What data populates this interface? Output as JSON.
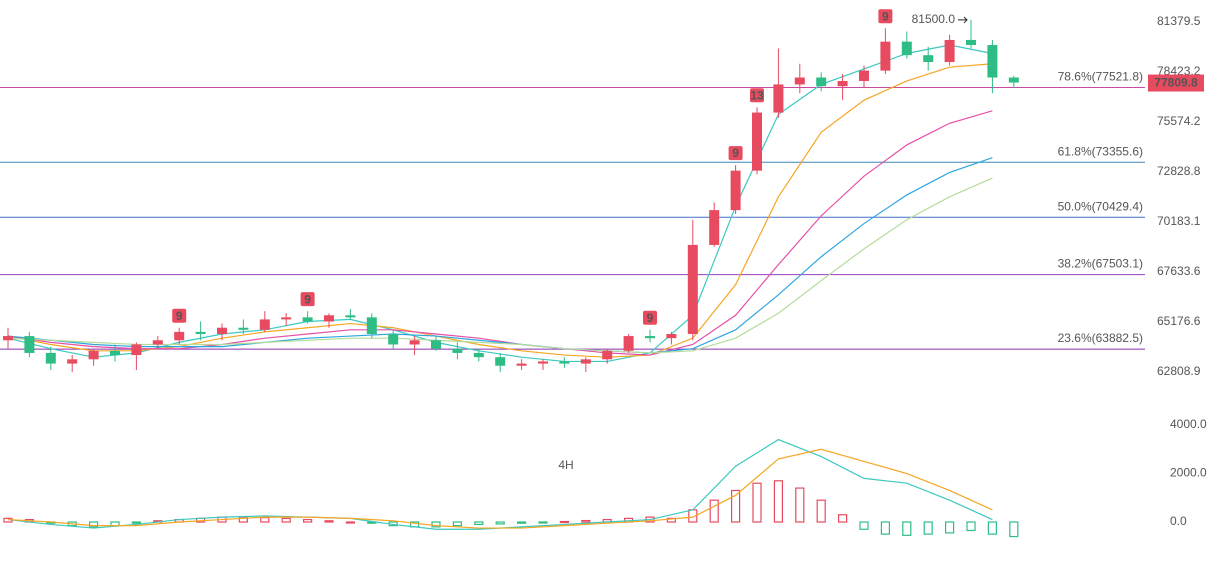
{
  "chart_data": {
    "type": "candlestick",
    "log_scale": true,
    "ylim": [
      61520,
      82710
    ],
    "yticks": [
      81379.5,
      78423.2,
      75574.2,
      72828.8,
      70183.1,
      67633.6,
      65176.6,
      62808.9
    ],
    "up_color": "#e84a5f",
    "down_color": "#2ebd85",
    "open": [
      64300,
      64500,
      63700,
      63200,
      63400,
      63800,
      63600,
      64100,
      64300,
      64700,
      64600,
      64900,
      64800,
      65300,
      65400,
      65200,
      65500,
      65400,
      64600,
      64100,
      64300,
      63900,
      63700,
      63500,
      63100,
      63200,
      63300,
      63200,
      63400,
      63800,
      64500,
      64400,
      64600,
      69000,
      70800,
      72900,
      76100,
      77700,
      78100,
      77600,
      77900,
      78500,
      80200,
      79400,
      79000,
      80300,
      80000,
      78100
    ],
    "high": [
      64900,
      64700,
      64000,
      63600,
      63900,
      64100,
      64200,
      64500,
      64900,
      65200,
      65100,
      65300,
      65700,
      65600,
      65700,
      65600,
      65800,
      65600,
      64800,
      64500,
      64500,
      64200,
      63900,
      63700,
      63400,
      63400,
      63500,
      63500,
      63900,
      64600,
      64800,
      64700,
      70300,
      71200,
      73200,
      76400,
      79800,
      78900,
      78400,
      78300,
      78800,
      81000,
      80800,
      79900,
      80600,
      81500,
      80300,
      78200
    ],
    "low": [
      63900,
      63500,
      62900,
      62800,
      63100,
      63300,
      62900,
      63900,
      64100,
      64300,
      64300,
      64600,
      64700,
      65000,
      65100,
      64900,
      65300,
      64400,
      63900,
      63600,
      63800,
      63400,
      63300,
      62800,
      62900,
      62900,
      63000,
      62800,
      63200,
      63700,
      64200,
      64100,
      64300,
      68900,
      70600,
      72700,
      75800,
      77200,
      77300,
      76800,
      77500,
      78300,
      79200,
      78500,
      78800,
      79800,
      77200,
      77500
    ],
    "close": [
      64500,
      63700,
      63200,
      63400,
      63800,
      63600,
      64100,
      64300,
      64700,
      64600,
      64900,
      64800,
      65300,
      65400,
      65200,
      65500,
      65400,
      64600,
      64100,
      64300,
      63900,
      63700,
      63500,
      63100,
      63200,
      63300,
      63200,
      63400,
      63800,
      64500,
      64400,
      64600,
      69000,
      70800,
      72900,
      76100,
      77700,
      78100,
      77600,
      77900,
      78500,
      80200,
      79400,
      79000,
      80300,
      80000,
      78100,
      77809.8
    ],
    "current_price": 77809.8,
    "high_marker": {
      "value": 81500,
      "label": "81500.0"
    },
    "fib_levels": [
      {
        "value": 77521.8,
        "label": "78.6%(77521.8)",
        "color": "#c94aa3"
      },
      {
        "value": 73355.6,
        "label": "61.8%(73355.6)",
        "color": "#3d86b8"
      },
      {
        "value": 70429.4,
        "label": "50.0%(70429.4)",
        "color": "#4470c8"
      },
      {
        "value": 67503.1,
        "label": "38.2%(67503.1)",
        "color": "#9a3fbf"
      },
      {
        "value": 63882.5,
        "label": "23.6%(63882.5)",
        "color": "#8b2fae"
      }
    ],
    "td_markers": [
      {
        "candle": 8,
        "count": 9
      },
      {
        "candle": 14,
        "count": 9
      },
      {
        "candle": 30,
        "count": 9
      },
      {
        "candle": 34,
        "count": 9
      },
      {
        "candle": 35,
        "count": 13
      },
      {
        "candle": 41,
        "count": 9
      }
    ],
    "ma_x": [
      0,
      2,
      4,
      6,
      8,
      10,
      12,
      14,
      16,
      18,
      20,
      22,
      24,
      26,
      28,
      30,
      32,
      34,
      36,
      38,
      40,
      42,
      44,
      46
    ],
    "moving_averages": [
      {
        "color": "#3cc8c0",
        "values": [
          64400,
          63900,
          63500,
          63700,
          64200,
          64600,
          64800,
          65200,
          65300,
          64800,
          64200,
          63800,
          63500,
          63300,
          63300,
          63700,
          65500,
          71000,
          76000,
          77700,
          78600,
          79500,
          80000,
          79500
        ]
      },
      {
        "color": "#f5a623",
        "values": [
          64500,
          64100,
          63800,
          63800,
          64000,
          64400,
          64700,
          64900,
          65100,
          64900,
          64500,
          64100,
          63800,
          63600,
          63500,
          63600,
          64400,
          67000,
          71500,
          75000,
          76800,
          77900,
          78700,
          78900
        ]
      },
      {
        "color": "#e64fa8",
        "values": [
          64500,
          64200,
          64000,
          63900,
          63900,
          64100,
          64400,
          64600,
          64800,
          64800,
          64600,
          64400,
          64100,
          63900,
          63700,
          63600,
          64100,
          65500,
          68000,
          70500,
          72600,
          74300,
          75500,
          76200
        ]
      },
      {
        "color": "#2fa6e0",
        "values": [
          64500,
          64300,
          64100,
          64000,
          64000,
          64000,
          64200,
          64400,
          64500,
          64600,
          64500,
          64300,
          64100,
          63900,
          63800,
          63700,
          63900,
          64800,
          66500,
          68400,
          70100,
          71600,
          72800,
          73600
        ]
      },
      {
        "color": "#b5dc9a",
        "values": [
          64400,
          64300,
          64200,
          64100,
          64100,
          64100,
          64200,
          64300,
          64400,
          64400,
          64300,
          64200,
          64100,
          63900,
          63800,
          63700,
          63800,
          64400,
          65600,
          67200,
          68800,
          70300,
          71500,
          72500
        ]
      }
    ],
    "macd": {
      "label": "4H",
      "ylim": [
        -1650,
        4620
      ],
      "yticks": [
        {
          "value": 4000,
          "label": "4000.0"
        },
        {
          "value": 2000,
          "label": "2000.0"
        },
        {
          "value": 0,
          "label": "0.0"
        }
      ],
      "histogram": [
        150,
        100,
        -50,
        -150,
        -200,
        -150,
        -50,
        50,
        100,
        150,
        200,
        200,
        180,
        150,
        100,
        50,
        0,
        -50,
        -150,
        -200,
        -200,
        -150,
        -100,
        -80,
        -50,
        -20,
        20,
        60,
        100,
        150,
        200,
        150,
        500,
        900,
        1300,
        1600,
        1700,
        1400,
        900,
        300,
        -300,
        -500,
        -550,
        -500,
        -450,
        -350,
        -500,
        -600
      ],
      "dif": {
        "color": "#3cc8c0",
        "values": [
          100,
          -100,
          -250,
          -100,
          100,
          200,
          250,
          200,
          150,
          -100,
          -300,
          -300,
          -200,
          -100,
          0,
          100,
          500,
          2300,
          3400,
          2700,
          1800,
          1600,
          900,
          100
        ]
      },
      "dea": {
        "color": "#f5a623",
        "values": [
          100,
          0,
          -150,
          -150,
          0,
          100,
          200,
          200,
          150,
          50,
          -150,
          -250,
          -250,
          -150,
          -50,
          50,
          200,
          1100,
          2600,
          3000,
          2500,
          2000,
          1300,
          500
        ]
      }
    }
  }
}
